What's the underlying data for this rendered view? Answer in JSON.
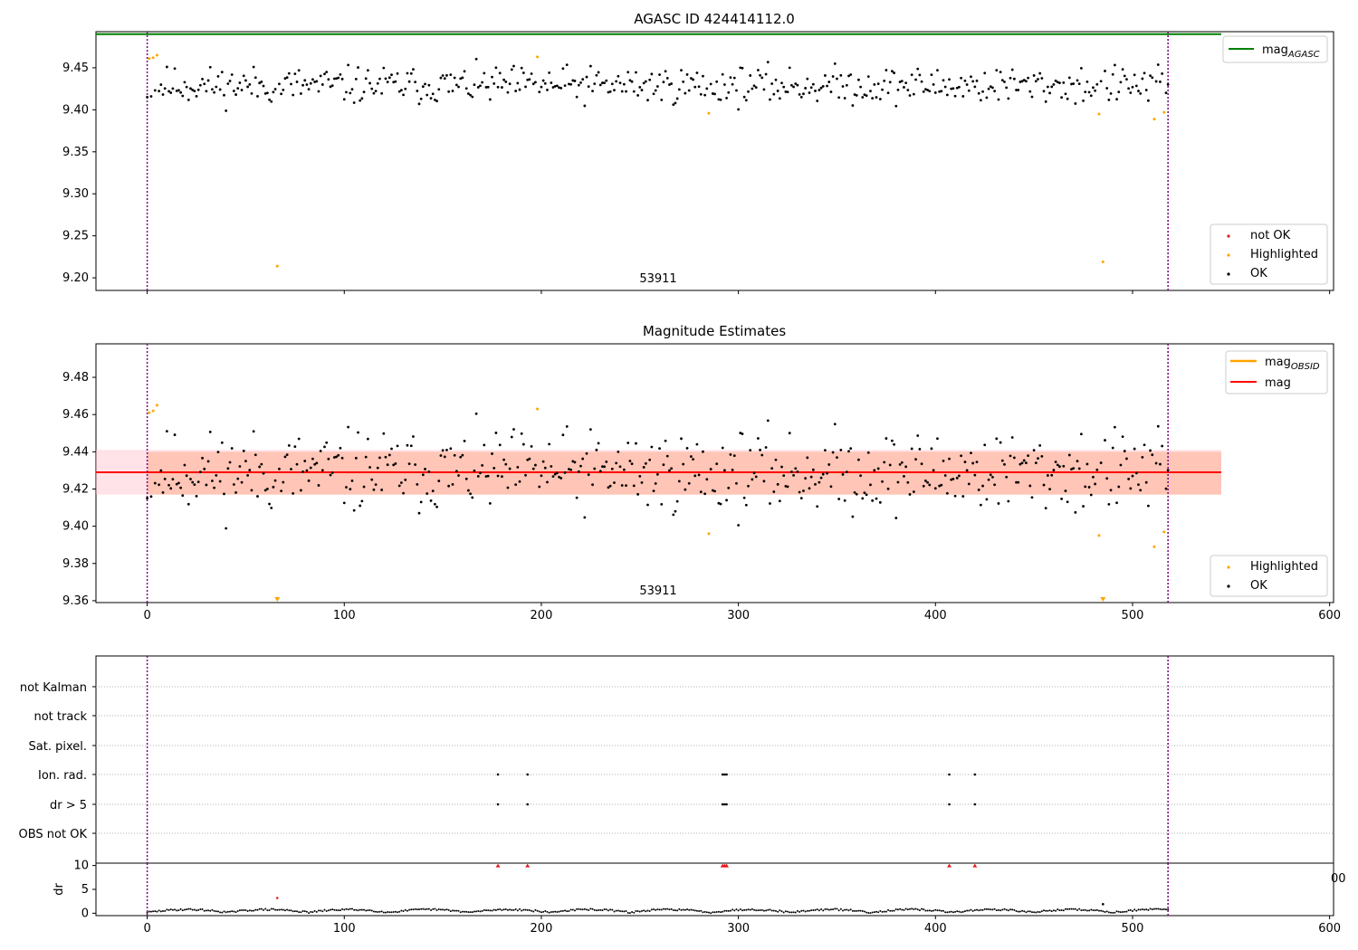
{
  "chart_data": [
    {
      "type": "scatter",
      "title": "AGASC ID 424414112.0",
      "annotation": "53911",
      "xlim": [
        -26,
        602
      ],
      "ylim": [
        9.185,
        9.493
      ],
      "x_ticks": [
        0,
        100,
        200,
        300,
        400,
        500,
        600
      ],
      "y_ticks": [
        9.2,
        9.25,
        9.3,
        9.35,
        9.4,
        9.45
      ],
      "y_tick_labels": [
        "9.20",
        "9.25",
        "9.30",
        "9.35",
        "9.40",
        "9.45"
      ],
      "vlines": [
        0,
        518
      ],
      "mag_agasc": 9.49,
      "mag_agasc_x": [
        -26,
        545
      ],
      "series_ok_count": 519,
      "ok_seed": 11,
      "ok_base": 9.429,
      "ok_spread": 0.011,
      "ok_xrange": [
        0,
        518
      ],
      "highlighted": [
        [
          1,
          9.461
        ],
        [
          3,
          9.462
        ],
        [
          5,
          9.465
        ],
        [
          66,
          9.214
        ],
        [
          198,
          9.463
        ],
        [
          285,
          9.396
        ],
        [
          483,
          9.395
        ],
        [
          485,
          9.219
        ],
        [
          511,
          9.389
        ],
        [
          516,
          9.397
        ]
      ],
      "legend_points": [
        "not OK",
        "Highlighted",
        "OK"
      ],
      "legend_line": "mag",
      "legend_line_sub": "AGASC",
      "colors": {
        "ok": "#000000",
        "not_ok": "#e41a1c",
        "highlighted": "#ffa500",
        "mag_agasc": "#008000",
        "vline": "#800080"
      }
    },
    {
      "type": "scatter",
      "title": "Magnitude Estimates",
      "annotation": "53911",
      "xlim": [
        -26,
        602
      ],
      "ylim": [
        9.359,
        9.498
      ],
      "x_ticks": [
        0,
        100,
        200,
        300,
        400,
        500,
        600
      ],
      "y_ticks": [
        9.36,
        9.38,
        9.4,
        9.42,
        9.44,
        9.46,
        9.48
      ],
      "y_tick_labels": [
        "9.36",
        "9.38",
        "9.40",
        "9.42",
        "9.44",
        "9.46",
        "9.48"
      ],
      "vlines": [
        0,
        518
      ],
      "mag": 9.429,
      "mag_band": [
        9.417,
        9.441
      ],
      "mag_obsid_band": [
        9.417,
        9.44
      ],
      "mag_x": [
        -26,
        545
      ],
      "mag_obsid_x": [
        0,
        545
      ],
      "highlighted_lower_limit_x": [
        66,
        485
      ],
      "legend_points": [
        "Highlighted",
        "OK"
      ],
      "legend_lines": [
        "mag",
        "mag"
      ],
      "legend_line_sub": "OBSID",
      "colors": {
        "mag": "#ff0000",
        "mag_obsid": "#ffa500",
        "mag_band": "#ffc0cb",
        "mag_obsid_band": "#ffa07a"
      }
    },
    {
      "type": "scatter",
      "title": "",
      "xlim": [
        -26,
        602
      ],
      "categories": [
        "not Kalman",
        "not track",
        "Sat. pixel.",
        "Ion. rad.",
        "dr > 5",
        "OBS not OK"
      ],
      "flag_points": {
        "Ion. rad.": [
          178,
          193,
          292,
          293,
          294,
          407,
          420
        ],
        "dr > 5": [
          178,
          193,
          292,
          293,
          294,
          407,
          420
        ]
      },
      "vlines": [
        0,
        518
      ]
    },
    {
      "type": "scatter",
      "ylabel": "dr",
      "xlim": [
        -26,
        602
      ],
      "ylim": [
        -0.5,
        10.5
      ],
      "x_ticks": [
        0,
        100,
        200,
        300,
        400,
        500,
        600
      ],
      "x_tick_labels": [
        "0",
        "100",
        "200",
        "300",
        "400",
        "500",
        "600"
      ],
      "y_ticks": [
        0,
        5,
        10
      ],
      "y_tick_labels": [
        "0",
        "5",
        "10"
      ],
      "dr_high_x": [
        178,
        193,
        292,
        293,
        294,
        407,
        420
      ],
      "dr_high_value": 10,
      "dr_outliers": [
        [
          66,
          3.2
        ],
        [
          485,
          1.9
        ]
      ],
      "right_edge_label": "00",
      "vlines": [
        0,
        518
      ]
    }
  ]
}
